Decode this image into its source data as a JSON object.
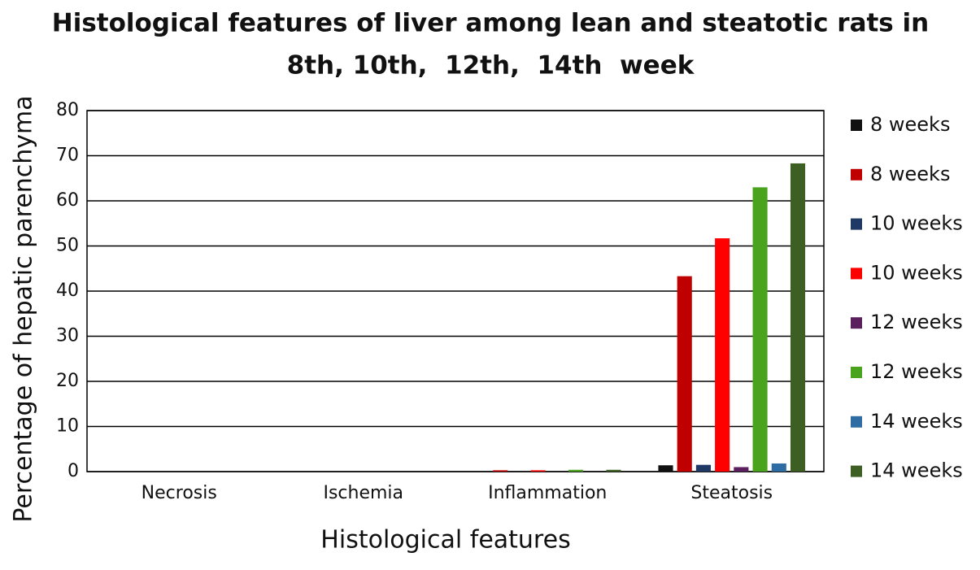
{
  "chart_data": {
    "type": "bar",
    "title": [
      "Histological features of liver among lean and steatotic rats in",
      "8th, 10th,  12th,  14th  week"
    ],
    "x_label": "Histological features",
    "y_label": "Percentage of hepatic parenchyma",
    "categories": [
      "Necrosis",
      "Ischemia",
      "Inflammation",
      "Steatosis"
    ],
    "series": [
      {
        "name": "8 weeks",
        "color": "#111111",
        "values": [
          0,
          0,
          0,
          1.4
        ]
      },
      {
        "name": "8 weeks",
        "color": "#c00000",
        "values": [
          0,
          0,
          0.3,
          43.3
        ]
      },
      {
        "name": "10 weeks",
        "color": "#1f3864",
        "values": [
          0,
          0,
          0,
          1.5
        ]
      },
      {
        "name": "10 weeks",
        "color": "#ff0000",
        "values": [
          0,
          0,
          0.3,
          51.7
        ]
      },
      {
        "name": "12 weeks",
        "color": "#5b1f5e",
        "values": [
          0,
          0,
          0,
          1.0
        ]
      },
      {
        "name": "12 weeks",
        "color": "#4aa31c",
        "values": [
          0,
          0,
          0.4,
          63
        ]
      },
      {
        "name": "14 weeks",
        "color": "#2e6da4",
        "values": [
          0,
          0,
          0,
          1.8
        ]
      },
      {
        "name": "14 weeks",
        "color": "#3d5f23",
        "values": [
          0,
          0,
          0.4,
          68.3
        ]
      }
    ],
    "ylim": [
      0,
      80
    ],
    "yticks": [
      0,
      10,
      20,
      30,
      40,
      50,
      60,
      70,
      80
    ],
    "grid": true,
    "legend": "right"
  }
}
